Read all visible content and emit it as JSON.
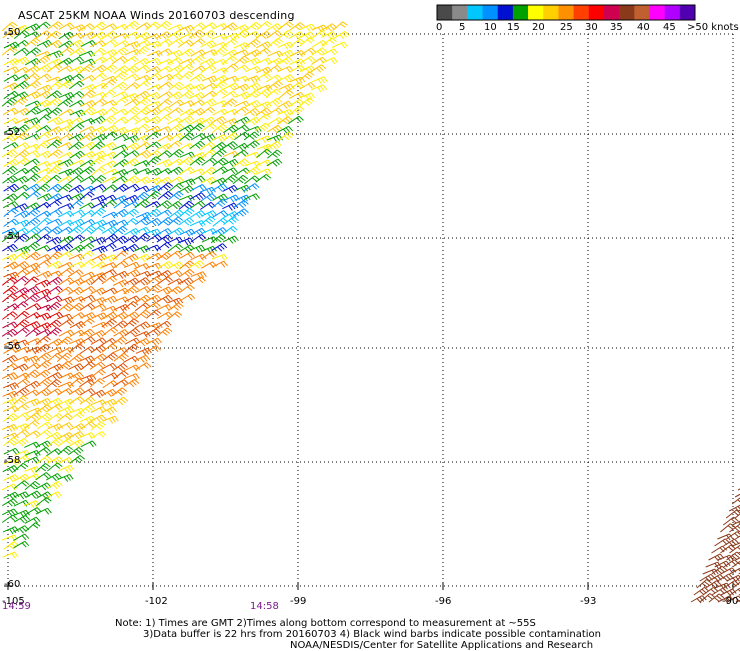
{
  "title": "ASCAT 25KM NOAA Winds 20160703 descending",
  "colorbar": {
    "labels": [
      "0",
      "5",
      "10",
      "15",
      "20",
      "25",
      "30",
      "35",
      "40",
      "45",
      ">50 knots"
    ],
    "colors": [
      "#4a4a4a",
      "#8a8a8a",
      "#00c8ff",
      "#0090ff",
      "#0010d0",
      "#00a000",
      "#ffff00",
      "#ffd000",
      "#ff9000",
      "#ff4000",
      "#ff0000",
      "#d00050",
      "#8a3a1a",
      "#c06030",
      "#ff00ff",
      "#b000ff",
      "#5000b0"
    ]
  },
  "axes": {
    "x_ticks": [
      "-105",
      "-102",
      "-99",
      "-96",
      "-93",
      "-90"
    ],
    "y_ticks": [
      "-50",
      "-52",
      "-54",
      "-56",
      "-58",
      "-60"
    ]
  },
  "times": {
    "left": "14:59",
    "middle": "14:58"
  },
  "notes": {
    "line1": "Note: 1) Times are GMT 2)Times along bottom correspond to measurement at ~55S",
    "line2": "3)Data buffer is 22 hrs from 20160703 4) Black wind barbs indicate possible contamination",
    "line3": "NOAA/NESDIS/Center for Satellite Applications and Research"
  },
  "wind_colors": {
    "gray": "#808080",
    "cyan": "#00c8ff",
    "lightblue": "#0090ff",
    "blue": "#0010d0",
    "green": "#00a000",
    "yellow": "#ffee00",
    "gold": "#ffc800",
    "orange": "#ff8000",
    "darkorange": "#e05000",
    "red": "#e00000",
    "crimson": "#c00040",
    "brown": "#8a3a1a"
  }
}
